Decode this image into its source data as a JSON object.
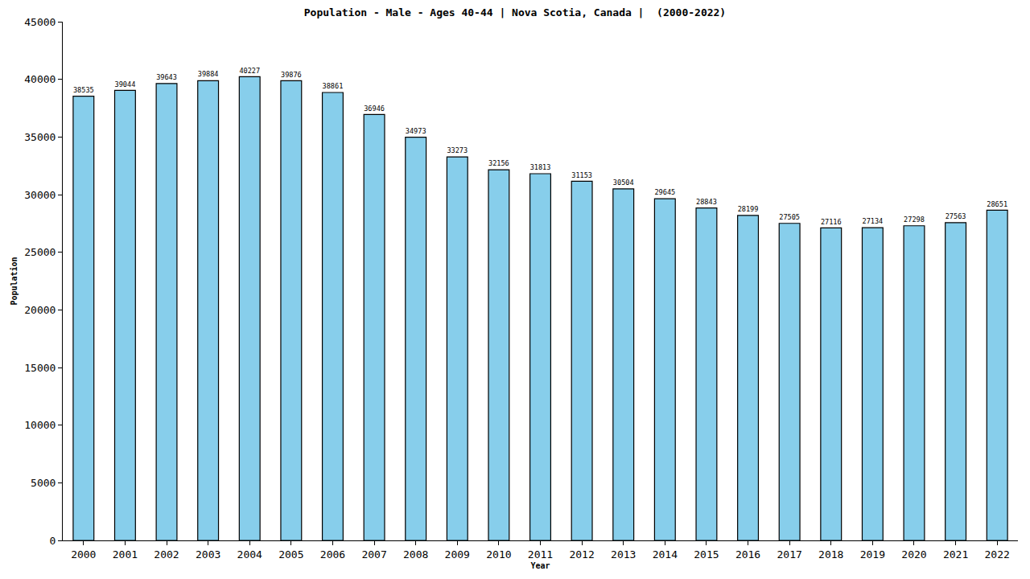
{
  "chart_data": {
    "type": "bar",
    "title": "Population - Male - Ages 40-44 | Nova Scotia, Canada |  (2000-2022)",
    "x_label": "Year",
    "y_label": "Population",
    "categories": [
      "2000",
      "2001",
      "2002",
      "2003",
      "2004",
      "2005",
      "2006",
      "2007",
      "2008",
      "2009",
      "2010",
      "2011",
      "2012",
      "2013",
      "2014",
      "2015",
      "2016",
      "2017",
      "2018",
      "2019",
      "2020",
      "2021",
      "2022"
    ],
    "values": [
      38535,
      39044,
      39643,
      39884,
      40227,
      39876,
      38861,
      36946,
      34973,
      33273,
      32156,
      31813,
      31153,
      30504,
      29645,
      28843,
      28199,
      27505,
      27116,
      27134,
      27298,
      27563,
      28651
    ],
    "color": "#87ceeb",
    "ylim": [
      0,
      45000
    ],
    "yticks": [
      0,
      5000,
      10000,
      15000,
      20000,
      25000,
      30000,
      35000,
      40000,
      45000
    ],
    "grid": false,
    "data_labels": true
  }
}
